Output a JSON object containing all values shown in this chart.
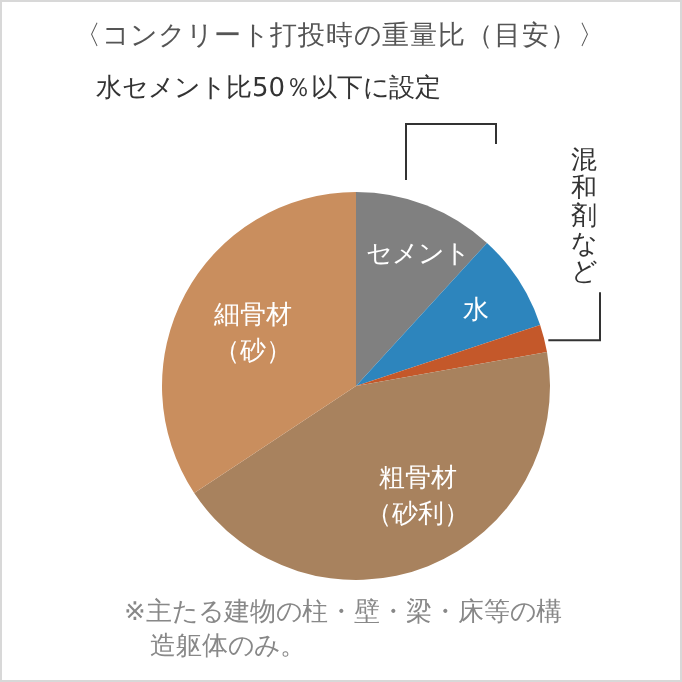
{
  "chart_data": {
    "type": "pie",
    "title": "〈コンクリート打投時の重量比（目安）〉",
    "categories": [
      "セメント",
      "水",
      "混和剤など",
      "粗骨材（砂利）",
      "細骨材（砂）"
    ],
    "values": [
      11.8,
      8.1,
      2.3,
      43.5,
      34.3
    ],
    "colors": [
      "#808080",
      "#2d85bd",
      "#c4582a",
      "#a8825e",
      "#c98e5e"
    ],
    "annotations": [
      "水セメント比50％以下に設定",
      "※主たる建物の柱・壁・梁・床等の構造躯体のみ。"
    ]
  }
}
